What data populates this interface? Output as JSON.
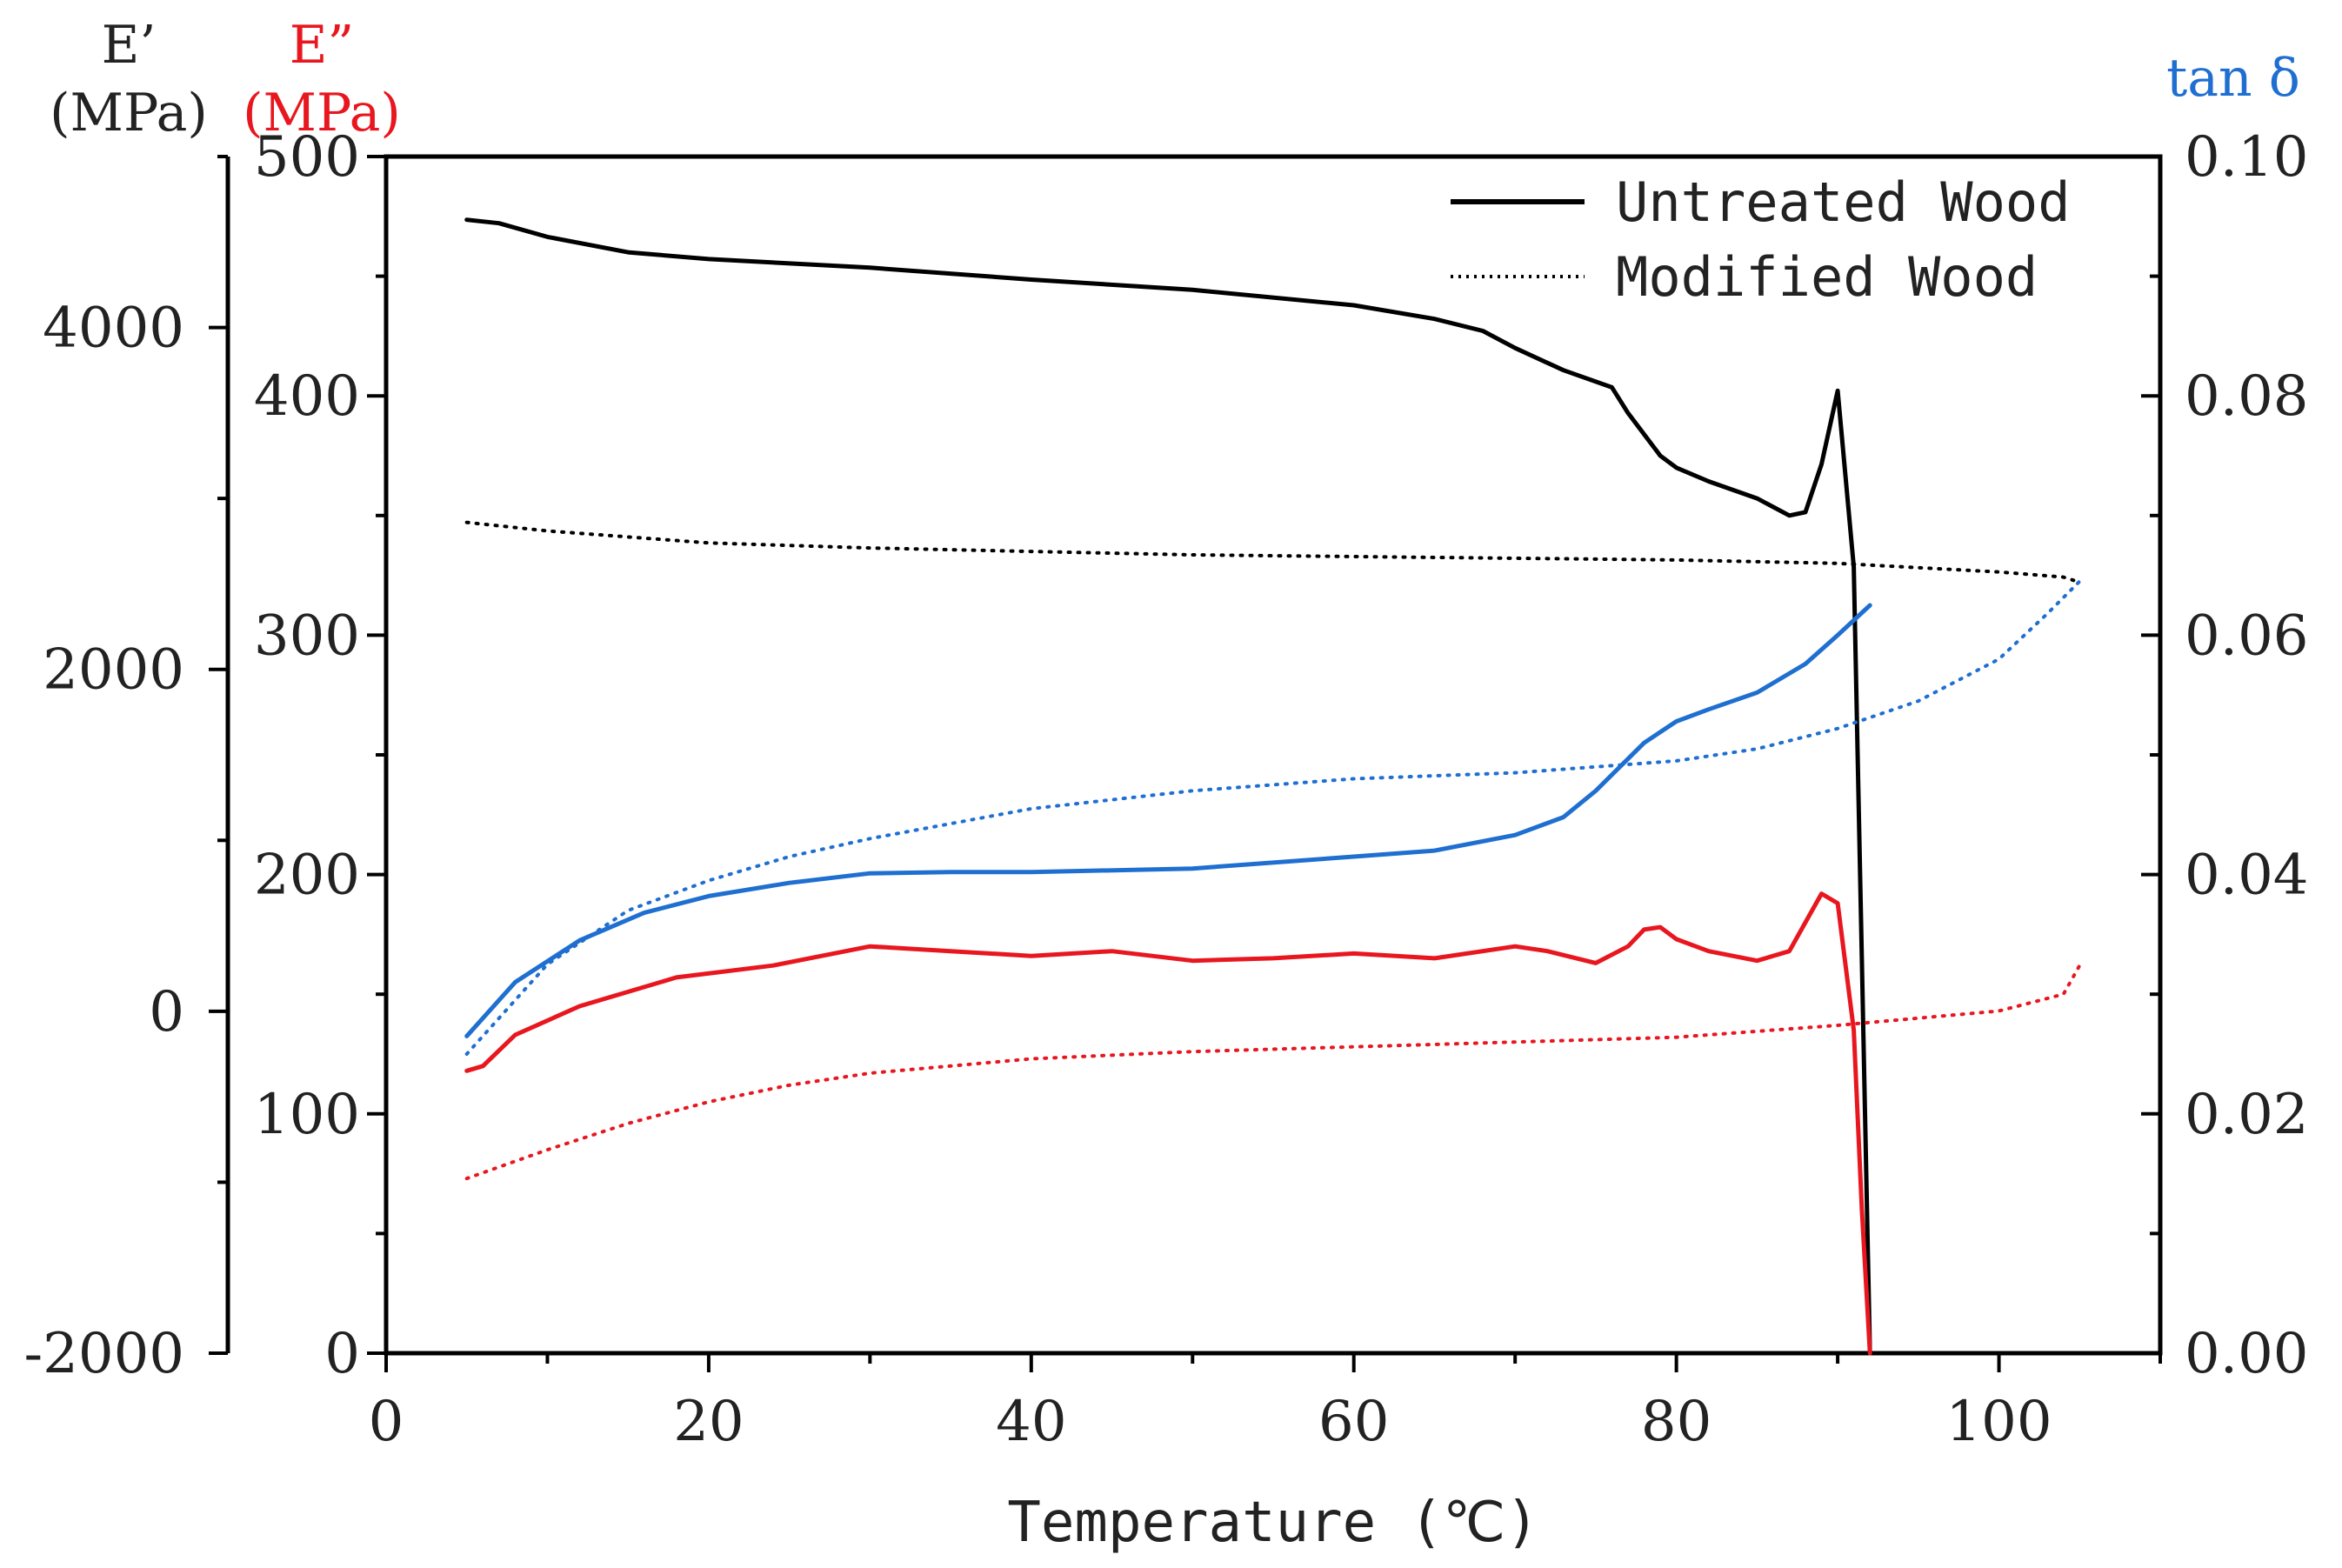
{
  "chart_data": {
    "type": "line",
    "title": "",
    "xlabel": "Temperature (℃)",
    "xlim": [
      0,
      110
    ],
    "x_ticks": [
      "0",
      "20",
      "40",
      "60",
      "80",
      "100"
    ],
    "axes": {
      "e_storage": {
        "label_top": "E’",
        "label_unit": "(MPa)",
        "color": "#000000",
        "ylim": [
          -2000,
          5000
        ],
        "ticks": [
          "-2000",
          "0",
          "2000",
          "4000"
        ]
      },
      "e_loss": {
        "label_top": "E”",
        "label_unit": "(MPa)",
        "color": "#e8171f",
        "ylim": [
          0,
          500
        ],
        "ticks": [
          "0",
          "100",
          "200",
          "300",
          "400",
          "500"
        ]
      },
      "tan_delta": {
        "label": "tan δ",
        "color": "#1f6fd1",
        "ylim": [
          0,
          0.1
        ],
        "ticks": [
          "0.00",
          "0.02",
          "0.04",
          "0.06",
          "0.08",
          "0.10"
        ]
      }
    },
    "legend": [
      {
        "name": "Untreated Wood",
        "style": "solid"
      },
      {
        "name": "Modified Wood",
        "style": "dotted"
      }
    ],
    "series": [
      {
        "name": "Untreated Wood E'",
        "axis": "e_storage",
        "style": "solid",
        "color": "#000000",
        "x": [
          5,
          7,
          10,
          15,
          20,
          30,
          40,
          50,
          60,
          65,
          68,
          70,
          73,
          76,
          77,
          79,
          80,
          82,
          85,
          87,
          88,
          89,
          90,
          91,
          91.5,
          92
        ],
        "y": [
          4630,
          4610,
          4530,
          4440,
          4400,
          4350,
          4280,
          4220,
          4130,
          4050,
          3980,
          3880,
          3750,
          3650,
          3500,
          3250,
          3180,
          3100,
          3000,
          2900,
          2920,
          3200,
          3630,
          2600,
          300,
          -2000
        ]
      },
      {
        "name": "Modified Wood E'",
        "axis": "e_storage",
        "style": "dotted",
        "color": "#000000",
        "x": [
          5,
          10,
          20,
          30,
          40,
          50,
          60,
          70,
          80,
          90,
          100,
          104,
          105
        ],
        "y": [
          2860,
          2810,
          2740,
          2710,
          2690,
          2670,
          2660,
          2650,
          2640,
          2620,
          2570,
          2540,
          2510
        ]
      },
      {
        "name": "Untreated Wood tan δ",
        "axis": "tan_delta",
        "style": "solid",
        "color": "#1f6fd1",
        "x": [
          5,
          8,
          12,
          16,
          20,
          25,
          30,
          35,
          40,
          50,
          60,
          65,
          70,
          73,
          75,
          78,
          80,
          82,
          85,
          88,
          90,
          92
        ],
        "y": [
          0.0265,
          0.031,
          0.0345,
          0.0368,
          0.0382,
          0.0393,
          0.0401,
          0.0402,
          0.0402,
          0.0405,
          0.0415,
          0.042,
          0.0433,
          0.0448,
          0.047,
          0.051,
          0.0528,
          0.0538,
          0.0552,
          0.0576,
          0.06,
          0.0625
        ]
      },
      {
        "name": "Modified Wood tan δ",
        "axis": "tan_delta",
        "style": "dotted",
        "color": "#1f6fd1",
        "x": [
          5,
          10,
          15,
          20,
          25,
          30,
          40,
          50,
          60,
          70,
          80,
          85,
          90,
          95,
          100,
          103,
          105
        ],
        "y": [
          0.025,
          0.0325,
          0.037,
          0.0395,
          0.0415,
          0.043,
          0.0455,
          0.047,
          0.048,
          0.0485,
          0.0495,
          0.0505,
          0.0522,
          0.0545,
          0.058,
          0.0618,
          0.0645
        ]
      },
      {
        "name": "Untreated Wood E”",
        "axis": "e_loss",
        "style": "solid",
        "color": "#e8171f",
        "x": [
          5,
          6,
          8,
          12,
          18,
          24,
          30,
          35,
          40,
          45,
          50,
          55,
          60,
          65,
          70,
          72,
          75,
          77,
          78,
          79,
          80,
          82,
          85,
          87,
          88,
          89,
          90,
          91,
          91.5,
          92
        ],
        "y": [
          118,
          120,
          133,
          145,
          157,
          162,
          170,
          168,
          166,
          168,
          164,
          165,
          167,
          165,
          170,
          168,
          163,
          170,
          177,
          178,
          173,
          168,
          164,
          168,
          180,
          192,
          188,
          135,
          60,
          0
        ]
      },
      {
        "name": "Modified Wood E”",
        "axis": "e_loss",
        "style": "dotted",
        "color": "#e8171f",
        "x": [
          5,
          10,
          15,
          20,
          25,
          30,
          40,
          50,
          60,
          70,
          80,
          90,
          100,
          104,
          105
        ],
        "y": [
          73,
          85,
          96,
          105,
          112,
          117,
          123,
          126,
          128,
          130,
          132,
          137,
          143,
          150,
          162
        ]
      }
    ]
  }
}
